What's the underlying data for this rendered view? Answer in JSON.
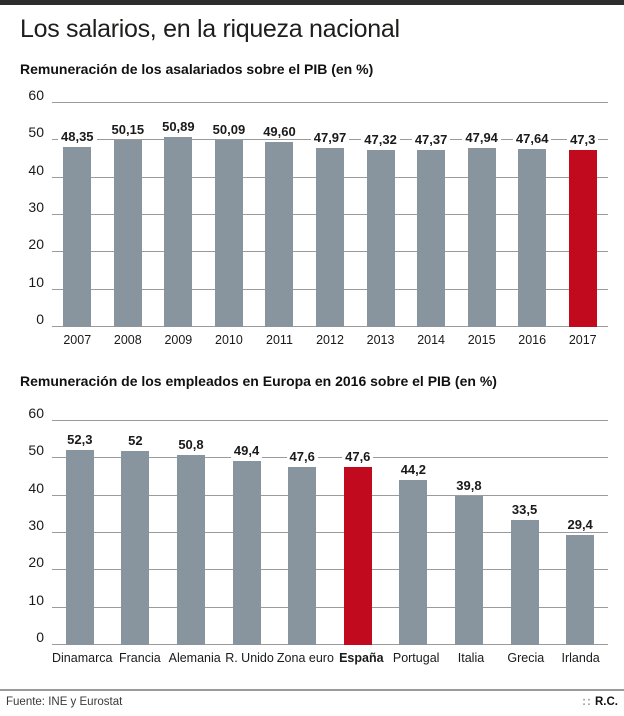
{
  "page": {
    "title": "Los salarios, en la riqueza nacional",
    "footer": {
      "source": "Fuente: INE y Eurostat",
      "credit_prefix": "::",
      "credit": "R.C."
    }
  },
  "colors": {
    "bar": "#88959e",
    "highlight": "#c10a1e",
    "grid": "#9b9b9b",
    "topbar": "#2d2d2d"
  },
  "chart_data": [
    {
      "type": "bar",
      "title": "Remuneración de los asalariados sobre el PIB (en %)",
      "categories": [
        "2007",
        "2008",
        "2009",
        "2010",
        "2011",
        "2012",
        "2013",
        "2014",
        "2015",
        "2016",
        "2017"
      ],
      "values": [
        48.35,
        50.15,
        50.89,
        50.09,
        49.6,
        47.97,
        47.32,
        47.37,
        47.94,
        47.64,
        47.3
      ],
      "value_labels": [
        "48,35",
        "50,15",
        "50,89",
        "50,09",
        "49,60",
        "47,97",
        "47,32",
        "47,37",
        "47,94",
        "47,64",
        "47,3"
      ],
      "highlight_index": 10,
      "bold_category_index": -1,
      "xlabel": "",
      "ylabel": "",
      "ylim": [
        0,
        60
      ],
      "yticks": [
        0,
        10,
        20,
        30,
        40,
        50,
        60
      ],
      "grid": true,
      "legend": "none"
    },
    {
      "type": "bar",
      "title": "Remuneración de los empleados en Europa en 2016 sobre el PIB (en %)",
      "categories": [
        "Dinamarca",
        "Francia",
        "Alemania",
        "R. Unido",
        "Zona euro",
        "España",
        "Portugal",
        "Italia",
        "Grecia",
        "Irlanda"
      ],
      "values": [
        52.3,
        52,
        50.8,
        49.4,
        47.6,
        47.6,
        44.2,
        39.8,
        33.5,
        29.4
      ],
      "value_labels": [
        "52,3",
        "52",
        "50,8",
        "49,4",
        "47,6",
        "47,6",
        "44,2",
        "39,8",
        "33,5",
        "29,4"
      ],
      "highlight_index": 5,
      "bold_category_index": 5,
      "xlabel": "",
      "ylabel": "",
      "ylim": [
        0,
        60
      ],
      "yticks": [
        0,
        10,
        20,
        30,
        40,
        50,
        60
      ],
      "grid": true,
      "legend": "none"
    }
  ]
}
